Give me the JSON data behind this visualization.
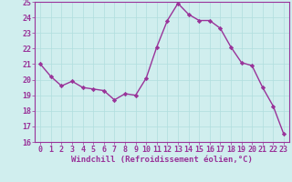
{
  "x": [
    0,
    1,
    2,
    3,
    4,
    5,
    6,
    7,
    8,
    9,
    10,
    11,
    12,
    13,
    14,
    15,
    16,
    17,
    18,
    19,
    20,
    21,
    22,
    23
  ],
  "y": [
    21.0,
    20.2,
    19.6,
    19.9,
    19.5,
    19.4,
    19.3,
    18.7,
    19.1,
    19.0,
    20.1,
    22.1,
    23.8,
    24.9,
    24.2,
    23.8,
    23.8,
    23.3,
    22.1,
    21.1,
    20.9,
    19.5,
    18.3,
    16.5
  ],
  "line_color": "#993399",
  "marker": "D",
  "marker_size": 2.2,
  "linewidth": 1.0,
  "xlabel": "Windchill (Refroidissement éolien,°C)",
  "xlabel_fontsize": 6.5,
  "ylim": [
    16,
    25
  ],
  "xlim": [
    -0.5,
    23.5
  ],
  "yticks": [
    16,
    17,
    18,
    19,
    20,
    21,
    22,
    23,
    24,
    25
  ],
  "xticks": [
    0,
    1,
    2,
    3,
    4,
    5,
    6,
    7,
    8,
    9,
    10,
    11,
    12,
    13,
    14,
    15,
    16,
    17,
    18,
    19,
    20,
    21,
    22,
    23
  ],
  "grid_color": "#b0dede",
  "bg_color": "#d0eeee",
  "tick_fontsize": 6.0,
  "tick_color": "#993399",
  "label_color": "#993399",
  "spine_color": "#993399"
}
